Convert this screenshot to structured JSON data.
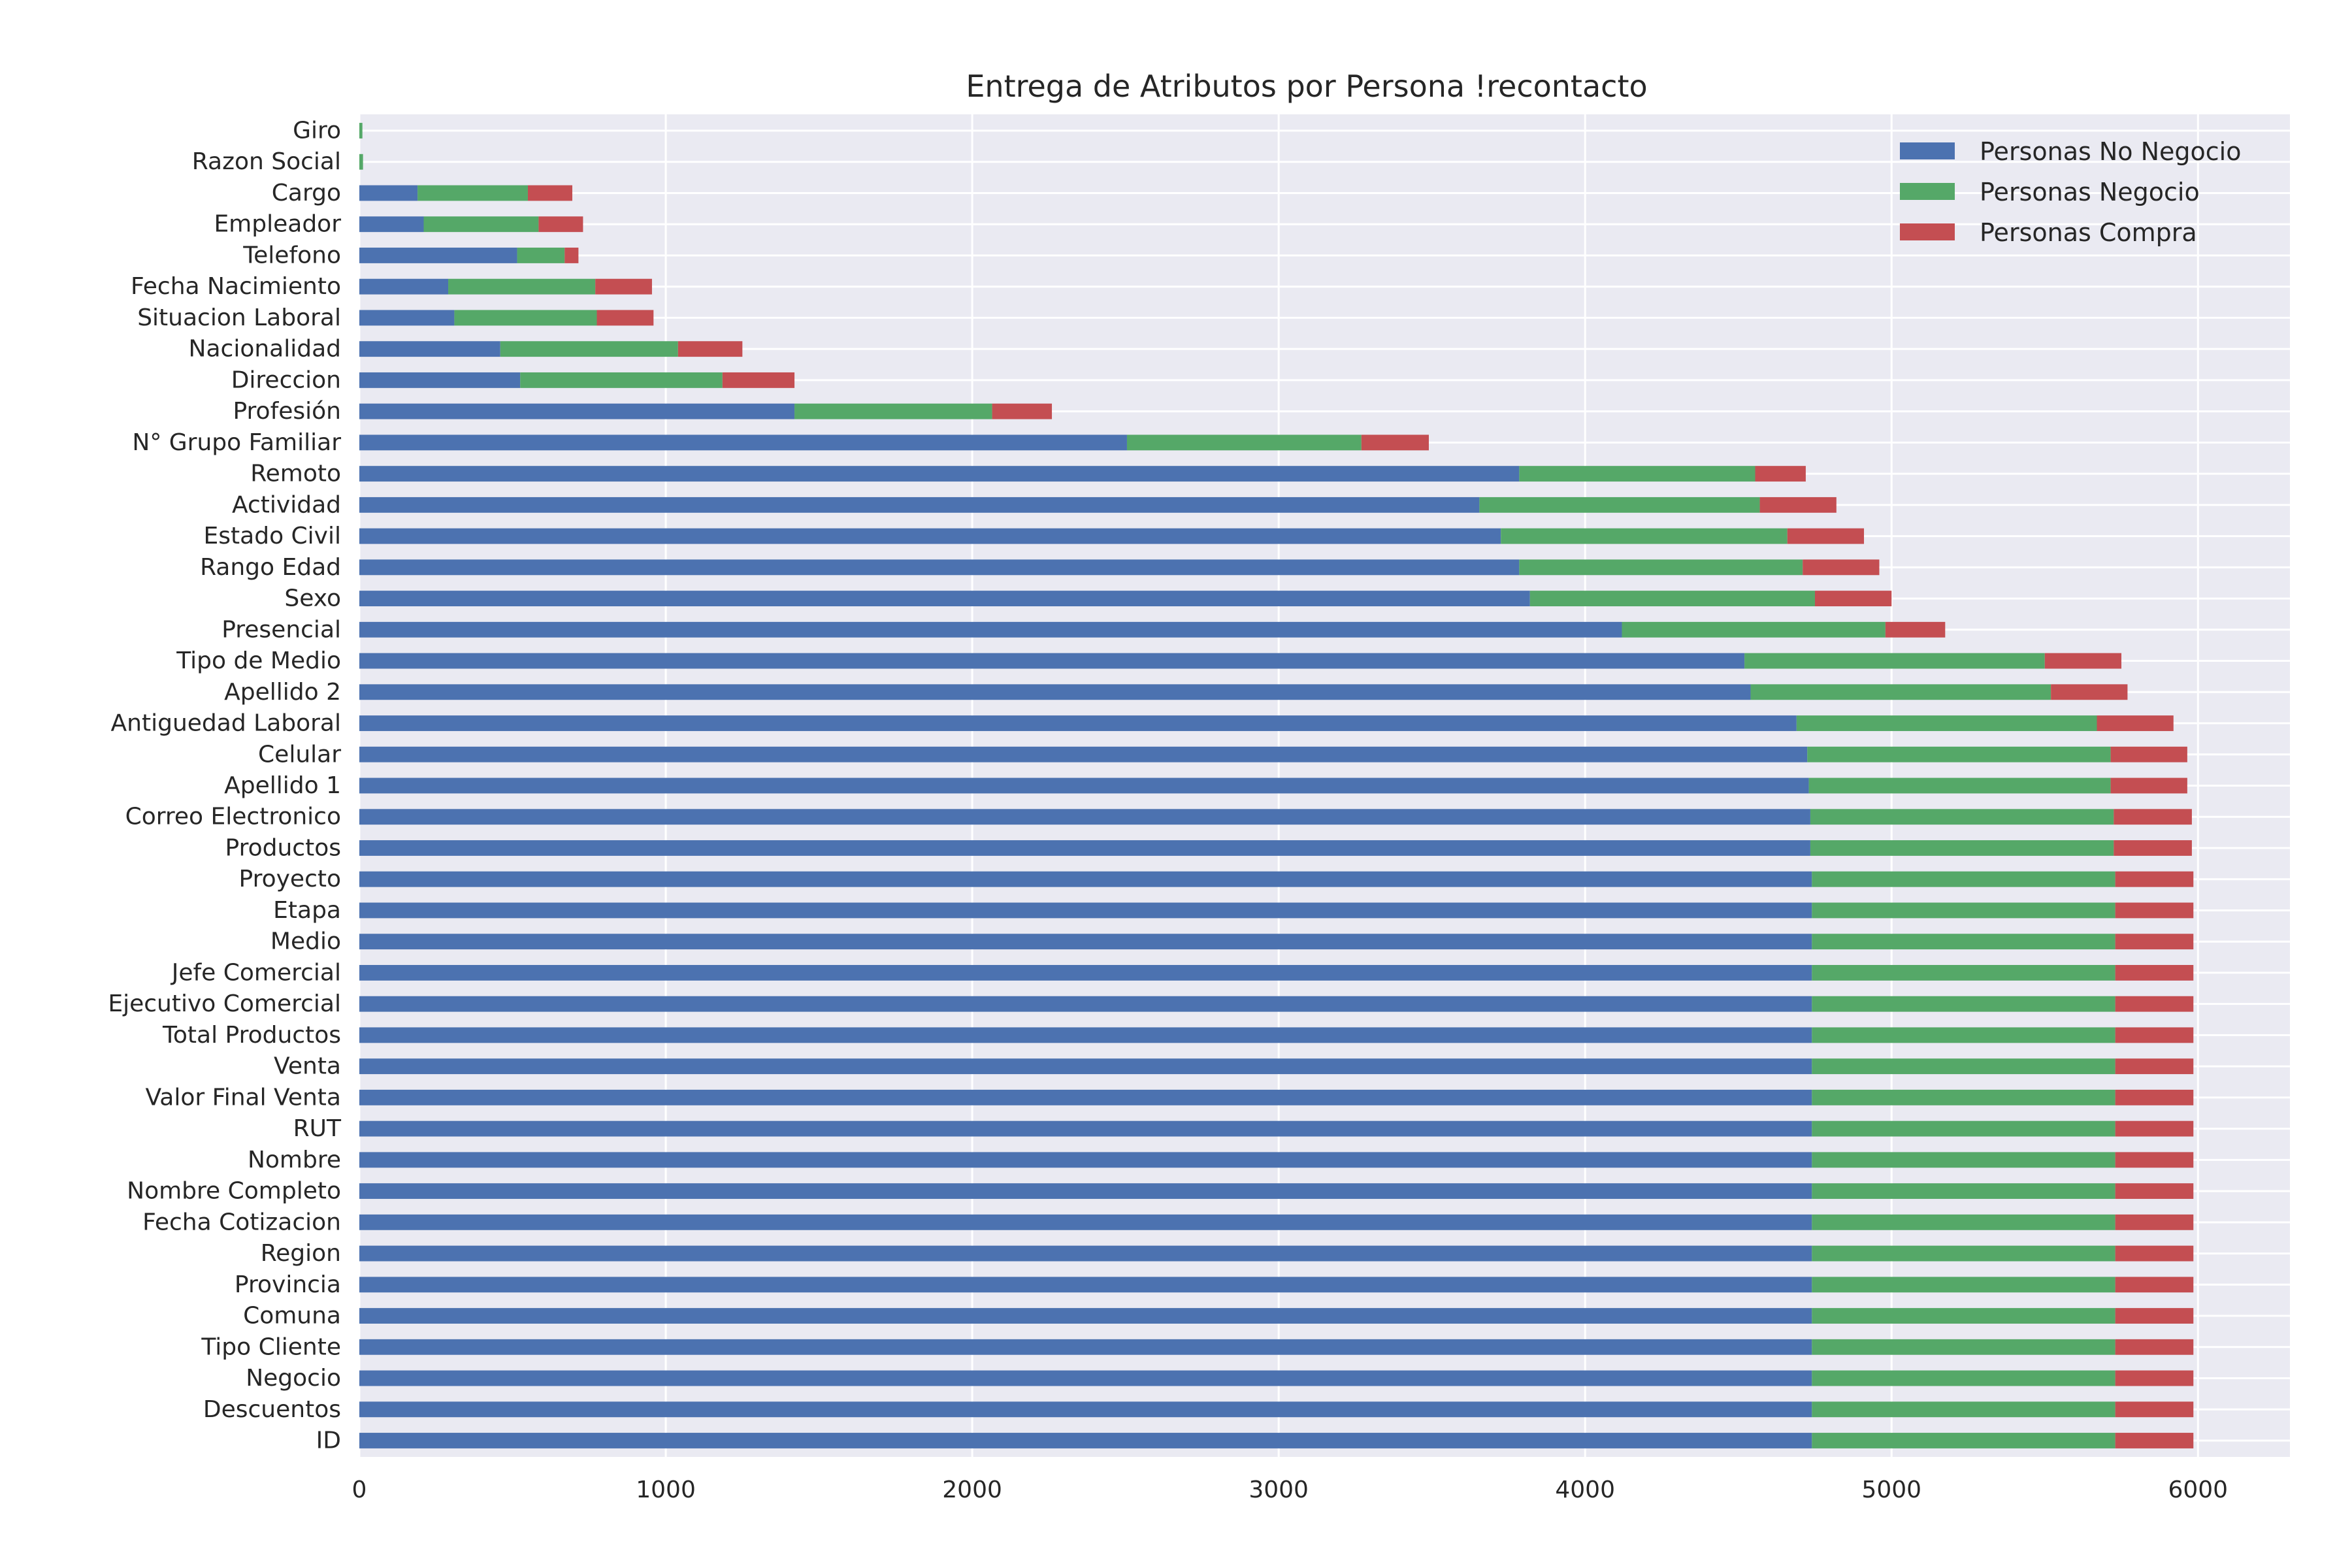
{
  "chart_data": {
    "type": "bar",
    "orientation": "horizontal",
    "stacked": true,
    "title": "Entrega de Atributos por Persona !recontacto",
    "xlabel": "",
    "ylabel": "",
    "xlim": [
      0,
      6300
    ],
    "xticks": [
      0,
      1000,
      2000,
      3000,
      4000,
      5000,
      6000
    ],
    "xtick_labels": [
      "0",
      "1000",
      "2000",
      "3000",
      "4000",
      "5000",
      "6000"
    ],
    "grid": true,
    "legend_position": "top-right",
    "categories": [
      "Giro",
      "Razon Social",
      "Cargo",
      "Empleador",
      "Telefono",
      "Fecha Nacimiento",
      "Situacion Laboral",
      "Nacionalidad",
      "Direccion",
      "Profesión",
      "N° Grupo Familiar",
      "Remoto",
      "Actividad",
      "Estado Civil",
      "Rango Edad",
      "Sexo",
      "Presencial",
      "Tipo de Medio",
      "Apellido 2",
      "Antiguedad Laboral",
      "Celular",
      "Apellido 1",
      "Correo Electronico",
      "Productos",
      "Proyecto",
      "Etapa",
      "Medio",
      "Jefe Comercial",
      "Ejecutivo Comercial",
      "Total Productos",
      "Venta",
      "Valor Final Venta",
      "RUT",
      "Nombre",
      "Nombre Completo",
      "Fecha Cotizacion",
      "Region",
      "Provincia",
      "Comuna",
      "Tipo Cliente",
      "Negocio",
      "Descuentos",
      "ID"
    ],
    "series": [
      {
        "name": "Personas No Negocio",
        "color": "#4C72B0",
        "values": [
          0,
          0,
          190,
          210,
          515,
          290,
          310,
          460,
          525,
          1420,
          2505,
          3785,
          3655,
          3725,
          3785,
          3820,
          4120,
          4520,
          4540,
          4690,
          4725,
          4730,
          4735,
          4735,
          4740,
          4740,
          4740,
          4740,
          4740,
          4740,
          4740,
          4740,
          4740,
          4740,
          4740,
          4740,
          4740,
          4740,
          4740,
          4740,
          4740,
          4740,
          4740
        ]
      },
      {
        "name": "Personas Negocio",
        "color": "#55A868",
        "values": [
          10,
          12,
          360,
          375,
          155,
          480,
          465,
          580,
          660,
          645,
          765,
          770,
          915,
          935,
          925,
          930,
          860,
          980,
          980,
          980,
          990,
          985,
          990,
          990,
          990,
          990,
          990,
          990,
          990,
          990,
          990,
          990,
          990,
          990,
          990,
          990,
          990,
          990,
          990,
          990,
          990,
          990,
          990
        ]
      },
      {
        "name": "Personas Compra",
        "color": "#C44E52",
        "values": [
          0,
          0,
          145,
          145,
          45,
          185,
          185,
          210,
          235,
          195,
          220,
          165,
          250,
          250,
          250,
          250,
          195,
          250,
          250,
          250,
          250,
          250,
          255,
          255,
          255,
          255,
          255,
          255,
          255,
          255,
          255,
          255,
          255,
          255,
          255,
          255,
          255,
          255,
          255,
          255,
          255,
          255,
          255
        ]
      }
    ]
  }
}
